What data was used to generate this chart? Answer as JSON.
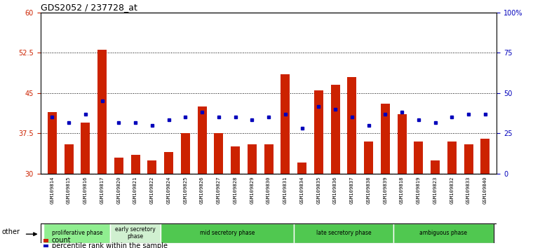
{
  "title": "GDS2052 / 237728_at",
  "samples": [
    "GSM109814",
    "GSM109815",
    "GSM109816",
    "GSM109817",
    "GSM109820",
    "GSM109821",
    "GSM109822",
    "GSM109824",
    "GSM109825",
    "GSM109826",
    "GSM109827",
    "GSM109828",
    "GSM109829",
    "GSM109830",
    "GSM109831",
    "GSM109834",
    "GSM109835",
    "GSM109836",
    "GSM109837",
    "GSM109838",
    "GSM109839",
    "GSM109818",
    "GSM109819",
    "GSM109823",
    "GSM109832",
    "GSM109833",
    "GSM109840"
  ],
  "count_values": [
    41.5,
    35.5,
    39.5,
    53.0,
    33.0,
    33.5,
    32.5,
    34.0,
    37.5,
    42.5,
    37.5,
    35.0,
    35.5,
    35.5,
    48.5,
    32.0,
    45.5,
    46.5,
    48.0,
    36.0,
    43.0,
    41.0,
    36.0,
    32.5,
    36.0,
    35.5,
    36.5
  ],
  "percentile_values": [
    40.5,
    39.5,
    41.0,
    43.5,
    39.5,
    39.5,
    39.0,
    40.0,
    40.5,
    41.5,
    40.5,
    40.5,
    40.0,
    40.5,
    41.0,
    38.5,
    42.5,
    42.0,
    40.5,
    39.0,
    41.0,
    41.5,
    40.0,
    39.5,
    40.5,
    41.0,
    41.0
  ],
  "ylim_left": [
    30,
    60
  ],
  "ylim_right": [
    0,
    100
  ],
  "yticks_left": [
    30,
    37.5,
    45,
    52.5,
    60
  ],
  "yticks_right": [
    0,
    25,
    50,
    75,
    100
  ],
  "ytick_labels_left": [
    "30",
    "37.5",
    "45",
    "52.5",
    "60"
  ],
  "ytick_labels_right": [
    "0",
    "25",
    "50",
    "75",
    "100%"
  ],
  "gridlines": [
    37.5,
    45,
    52.5
  ],
  "phases": [
    {
      "label": "proliferative phase",
      "start": 0,
      "end": 4,
      "color": "#90ee90"
    },
    {
      "label": "early secretory\nphase",
      "start": 4,
      "end": 7,
      "color": "#d0f0d0"
    },
    {
      "label": "mid secretory phase",
      "start": 7,
      "end": 15,
      "color": "#50c850"
    },
    {
      "label": "late secretory phase",
      "start": 15,
      "end": 21,
      "color": "#50c850"
    },
    {
      "label": "ambiguous phase",
      "start": 21,
      "end": 27,
      "color": "#50c850"
    }
  ],
  "bar_color": "#cc2200",
  "dot_color": "#0000bb",
  "bar_width": 0.55,
  "left_tick_color": "#cc2200",
  "right_tick_color": "#0000bb",
  "xtick_bg_color": "#d8d8d8"
}
